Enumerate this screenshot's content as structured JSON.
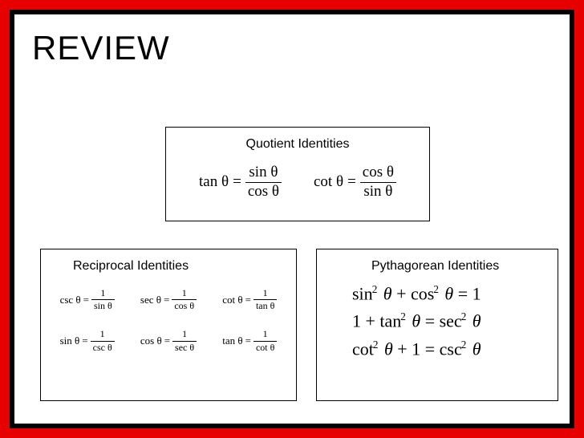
{
  "title": "REVIEW",
  "colors": {
    "outer_border": "#e60000",
    "inner_border": "#000000",
    "background": "#ffffff",
    "text": "#000000",
    "box_border": "#000000"
  },
  "quotient": {
    "title": "Quotient Identities",
    "eq1": {
      "lhs": "tan θ",
      "num": "sin θ",
      "den": "cos θ"
    },
    "eq2": {
      "lhs": "cot θ",
      "num": "cos θ",
      "den": "sin θ"
    }
  },
  "reciprocal": {
    "title": "Reciprocal Identities",
    "items": [
      {
        "lhs": "csc θ",
        "num": "1",
        "den": "sin θ"
      },
      {
        "lhs": "sec θ",
        "num": "1",
        "den": "cos θ"
      },
      {
        "lhs": "cot θ",
        "num": "1",
        "den": "tan θ"
      },
      {
        "lhs": "sin θ",
        "num": "1",
        "den": "csc θ"
      },
      {
        "lhs": "cos θ",
        "num": "1",
        "den": "sec θ"
      },
      {
        "lhs": "tan θ",
        "num": "1",
        "den": "cot θ"
      }
    ]
  },
  "pythagorean": {
    "title": "Pythagorean Identities",
    "lines_plain": [
      "sin² θ + cos² θ = 1",
      "1 + tan² θ = sec² θ",
      "cot² θ + 1 = csc² θ"
    ]
  }
}
